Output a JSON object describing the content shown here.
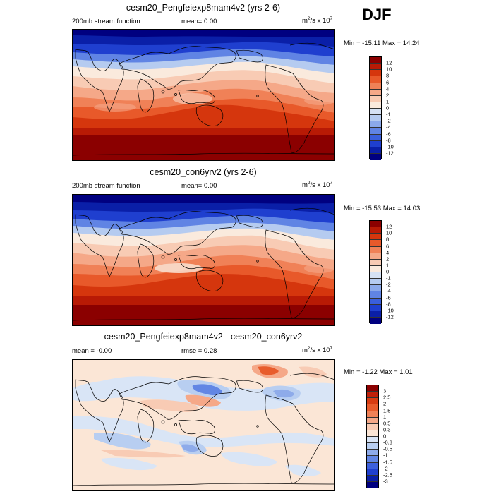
{
  "season": "DJF",
  "panels": [
    {
      "title": "cesm20_Pengfeiexp8mam4v2 (yrs 2-6)",
      "left_label": "200mb stream function",
      "mid_label": "mean=  0.00",
      "unit_base": "m",
      "unit_sup": "2",
      "unit_mid": "/s x 10",
      "unit_exp": "7",
      "minmax": "Min = -15.11 Max =  14.24",
      "levels": [
        "12",
        "10",
        "8",
        "6",
        "4",
        "2",
        "1",
        "0",
        "-1",
        "-2",
        "-4",
        "-6",
        "-8",
        "-10",
        "-12"
      ],
      "colors": [
        "#8b0000",
        "#b81a05",
        "#d5360d",
        "#e8592a",
        "#f08157",
        "#f5a888",
        "#f8cbb4",
        "#faeadd",
        "#d6e2f4",
        "#b5cbf0",
        "#8ba9ea",
        "#6084e4",
        "#3a5fdc",
        "#1f3fcf",
        "#0a1fa8",
        "#000080"
      ]
    },
    {
      "title": "cesm20_con6yrv2 (yrs 2-6)",
      "left_label": "200mb stream function",
      "mid_label": "mean=  0.00",
      "unit_base": "m",
      "unit_sup": "2",
      "unit_mid": "/s x 10",
      "unit_exp": "7",
      "minmax": "Min = -15.53 Max =  14.03",
      "levels": [
        "12",
        "10",
        "8",
        "6",
        "4",
        "2",
        "1",
        "0",
        "-1",
        "-2",
        "-4",
        "-6",
        "-8",
        "-10",
        "-12"
      ],
      "colors": [
        "#8b0000",
        "#b81a05",
        "#d5360d",
        "#e8592a",
        "#f08157",
        "#f5a888",
        "#f8cbb4",
        "#faeadd",
        "#d6e2f4",
        "#b5cbf0",
        "#8ba9ea",
        "#6084e4",
        "#3a5fdc",
        "#1f3fcf",
        "#0a1fa8",
        "#000080"
      ]
    },
    {
      "title": "cesm20_Pengfeiexp8mam4v2 - cesm20_con6yrv2",
      "left_label": "mean = -0.00",
      "mid_label": "rmse =  0.28",
      "unit_base": "m",
      "unit_sup": "2",
      "unit_mid": "/s x 10",
      "unit_exp": "7",
      "minmax": "Min = -1.22 Max =  1.01",
      "levels": [
        "3",
        "2.5",
        "2",
        "1.5",
        "1",
        "0.5",
        "0.3",
        "0",
        "-0.3",
        "-0.5",
        "-1",
        "-1.5",
        "-2",
        "-2.5",
        "-3"
      ],
      "colors": [
        "#8b0000",
        "#c0200a",
        "#d83c12",
        "#e85c2c",
        "#f08157",
        "#f5a888",
        "#f8cbb4",
        "#fbe6d6",
        "#d9e5f6",
        "#b8cef1",
        "#8eabea",
        "#6286e4",
        "#3d60dc",
        "#1f3fcf",
        "#0a1fa8",
        "#000080"
      ]
    }
  ]
}
